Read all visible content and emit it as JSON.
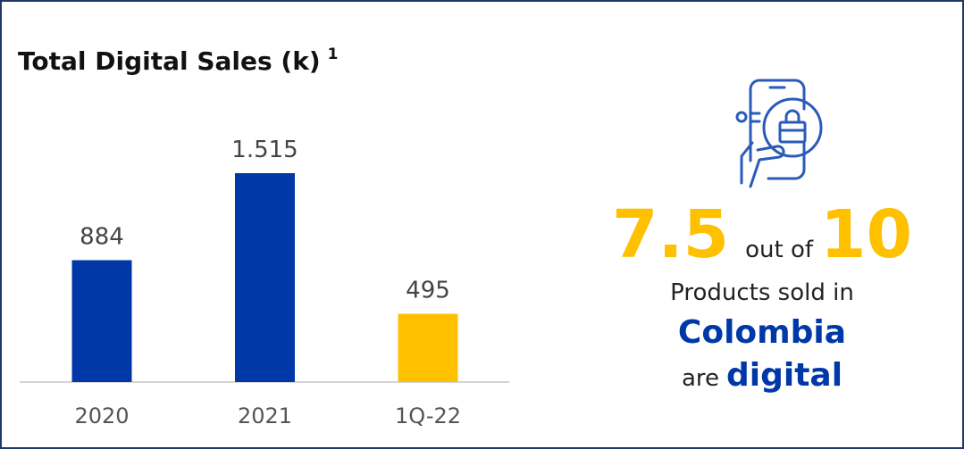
{
  "chart_data": {
    "type": "bar",
    "title": "Total Digital Sales (k)",
    "footnote_marker": "1",
    "categories": [
      "2020",
      "2021",
      "1Q-22"
    ],
    "values": [
      884,
      1515,
      495
    ],
    "value_labels": [
      "884",
      "1.515",
      "495"
    ],
    "colors": [
      "#0038a8",
      "#0038a8",
      "#ffc000"
    ]
  },
  "callout": {
    "share": "7.5",
    "out_of": "out of",
    "total": "10",
    "line1": "Products sold in",
    "country": "Colombia",
    "are": "are",
    "digital": "digital"
  }
}
